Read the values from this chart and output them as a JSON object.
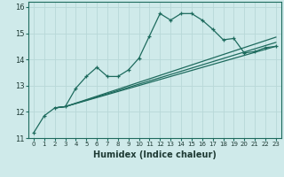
{
  "title": "",
  "xlabel": "Humidex (Indice chaleur)",
  "ylabel": "",
  "background_color": "#cfeaea",
  "grid_color": "#b8d8d8",
  "line_color": "#1e6b5e",
  "xlim": [
    -0.5,
    23.5
  ],
  "ylim": [
    11,
    16.2
  ],
  "xticks": [
    0,
    1,
    2,
    3,
    4,
    5,
    6,
    7,
    8,
    9,
    10,
    11,
    12,
    13,
    14,
    15,
    16,
    17,
    18,
    19,
    20,
    21,
    22,
    23
  ],
  "yticks": [
    11,
    12,
    13,
    14,
    15,
    16
  ],
  "lines": [
    {
      "x": [
        0,
        1,
        2,
        3,
        4,
        5,
        6,
        7,
        8,
        9,
        10,
        11,
        12,
        13,
        14,
        15,
        16,
        17,
        18,
        19,
        20,
        21,
        22,
        23
      ],
      "y": [
        11.2,
        11.85,
        12.15,
        12.2,
        12.9,
        13.35,
        13.7,
        13.35,
        13.35,
        13.6,
        14.05,
        14.9,
        15.75,
        15.5,
        15.75,
        15.75,
        15.5,
        15.15,
        14.75,
        14.8,
        14.25,
        14.3,
        14.45,
        14.5
      ],
      "marker": true
    },
    {
      "x": [
        2,
        3,
        23
      ],
      "y": [
        12.15,
        12.2,
        14.5
      ],
      "marker": false
    },
    {
      "x": [
        2,
        3,
        23
      ],
      "y": [
        12.15,
        12.2,
        14.65
      ],
      "marker": false
    },
    {
      "x": [
        2,
        3,
        23
      ],
      "y": [
        12.15,
        12.2,
        14.85
      ],
      "marker": false
    }
  ]
}
